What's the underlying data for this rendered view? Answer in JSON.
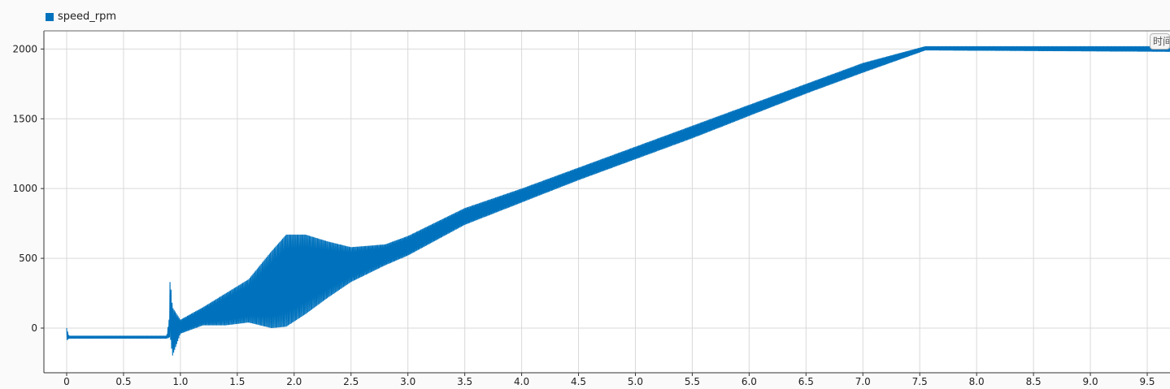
{
  "chart_data": {
    "type": "line",
    "title": "",
    "xlabel": "",
    "ylabel": "",
    "xlim": [
      -0.2,
      9.7
    ],
    "ylim": [
      -320,
      2130
    ],
    "grid": true,
    "legend_position": "top-left",
    "x_ticks": [
      0,
      0.5,
      1.0,
      1.5,
      2.0,
      2.5,
      3.0,
      3.5,
      4.0,
      4.5,
      5.0,
      5.5,
      6.0,
      6.5,
      7.0,
      7.5,
      8.0,
      8.5,
      9.0,
      9.5
    ],
    "x_tick_labels": [
      "0",
      "0.5",
      "1.0",
      "1.5",
      "2.0",
      "2.5",
      "3.0",
      "3.5",
      "4.0",
      "4.5",
      "5.0",
      "5.5",
      "6.0",
      "6.5",
      "7.0",
      "7.5",
      "8.0",
      "8.5",
      "9.0",
      "9.5"
    ],
    "y_ticks": [
      0,
      500,
      1000,
      1500,
      2000
    ],
    "y_tick_labels": [
      "0",
      "500",
      "1000",
      "1500",
      "2000"
    ],
    "series": [
      {
        "name": "speed_rpm",
        "color": "#0072bd",
        "envelope": [
          {
            "x": 0.0,
            "min": -90,
            "max": 0
          },
          {
            "x": 0.02,
            "min": -75,
            "max": -55
          },
          {
            "x": 0.88,
            "min": -75,
            "max": -55
          },
          {
            "x": 0.9,
            "min": -70,
            "max": 60
          },
          {
            "x": 0.91,
            "min": -60,
            "max": 360
          },
          {
            "x": 0.93,
            "min": -200,
            "max": 150
          },
          {
            "x": 1.0,
            "min": -40,
            "max": 60
          },
          {
            "x": 1.2,
            "min": 20,
            "max": 150
          },
          {
            "x": 1.4,
            "min": 20,
            "max": 250
          },
          {
            "x": 1.6,
            "min": 40,
            "max": 350
          },
          {
            "x": 1.8,
            "min": 0,
            "max": 550
          },
          {
            "x": 1.93,
            "min": 10,
            "max": 670
          },
          {
            "x": 2.1,
            "min": 100,
            "max": 670
          },
          {
            "x": 2.3,
            "min": 220,
            "max": 620
          },
          {
            "x": 2.5,
            "min": 330,
            "max": 580
          },
          {
            "x": 2.8,
            "min": 450,
            "max": 600
          },
          {
            "x": 3.0,
            "min": 520,
            "max": 660
          },
          {
            "x": 3.5,
            "min": 740,
            "max": 860
          },
          {
            "x": 4.0,
            "min": 900,
            "max": 1000
          },
          {
            "x": 4.5,
            "min": 1060,
            "max": 1150
          },
          {
            "x": 5.0,
            "min": 1210,
            "max": 1300
          },
          {
            "x": 5.5,
            "min": 1360,
            "max": 1450
          },
          {
            "x": 6.0,
            "min": 1520,
            "max": 1600
          },
          {
            "x": 6.5,
            "min": 1680,
            "max": 1750
          },
          {
            "x": 7.0,
            "min": 1830,
            "max": 1900
          },
          {
            "x": 7.55,
            "min": 1990,
            "max": 2020
          },
          {
            "x": 9.7,
            "min": 1980,
            "max": 2020
          }
        ]
      }
    ]
  },
  "ui": {
    "legend_label": "speed_rpm",
    "time_badge": "时间"
  }
}
